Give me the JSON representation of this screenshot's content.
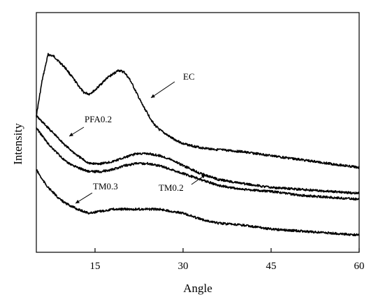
{
  "chart_data": {
    "type": "line",
    "xlabel": "Angle",
    "ylabel": "Intensity",
    "xlim": [
      5,
      60
    ],
    "ylim": [
      0,
      100
    ],
    "x_ticks": [
      15,
      30,
      45,
      60
    ],
    "y_ticks": [],
    "grid": false,
    "legend": "none",
    "series": [
      {
        "name": "EC",
        "x": [
          5,
          6,
          7,
          8,
          9,
          10,
          11,
          12,
          13,
          14,
          15,
          16,
          17,
          18,
          19,
          20,
          21,
          22,
          23,
          24,
          25,
          26,
          27,
          28,
          30,
          33,
          36,
          40,
          45,
          50,
          55,
          60
        ],
        "y": [
          62,
          80,
          93,
          92,
          89,
          86,
          82,
          78,
          74,
          73,
          75,
          78,
          81,
          83,
          85,
          84,
          80,
          74,
          68,
          63,
          58,
          55,
          53,
          51,
          48,
          46,
          45,
          44,
          42,
          40,
          38,
          36
        ]
      },
      {
        "name": "PFA0.2",
        "x": [
          5,
          6,
          7,
          8,
          9,
          10,
          12,
          14,
          16,
          18,
          20,
          22,
          24,
          26,
          28,
          30,
          33,
          36,
          40,
          45,
          50,
          55,
          60
        ],
        "y": [
          62,
          59,
          56,
          53,
          50,
          47,
          42,
          38,
          38,
          39,
          41,
          43,
          43,
          42,
          40,
          37,
          33,
          30,
          28,
          26,
          25,
          24,
          23
        ]
      },
      {
        "name": "TM0.2",
        "x": [
          5,
          6,
          7,
          8,
          9,
          10,
          12,
          14,
          16,
          18,
          20,
          22,
          24,
          26,
          28,
          30,
          33,
          36,
          40,
          45,
          50,
          55,
          60
        ],
        "y": [
          56,
          52,
          48,
          45,
          42,
          39,
          36,
          34,
          34,
          35,
          37,
          38,
          38,
          37,
          35,
          33,
          30,
          27,
          25,
          24,
          22,
          21,
          20
        ]
      },
      {
        "name": "TM0.3",
        "x": [
          5,
          6,
          7,
          8,
          9,
          10,
          12,
          14,
          16,
          18,
          20,
          22,
          24,
          26,
          28,
          30,
          33,
          36,
          40,
          45,
          50,
          55,
          60
        ],
        "y": [
          35,
          30,
          26,
          23,
          20,
          18,
          15,
          13,
          14,
          15,
          15,
          15,
          15,
          15,
          14,
          13,
          10,
          8,
          7,
          5,
          4,
          3,
          2
        ]
      }
    ],
    "annotations": [
      {
        "text": "EC",
        "series": "EC"
      },
      {
        "text": "PFA0.2",
        "series": "PFA0.2"
      },
      {
        "text": "TM0.2",
        "series": "TM0.2"
      },
      {
        "text": "TM0.3",
        "series": "TM0.3"
      }
    ]
  }
}
